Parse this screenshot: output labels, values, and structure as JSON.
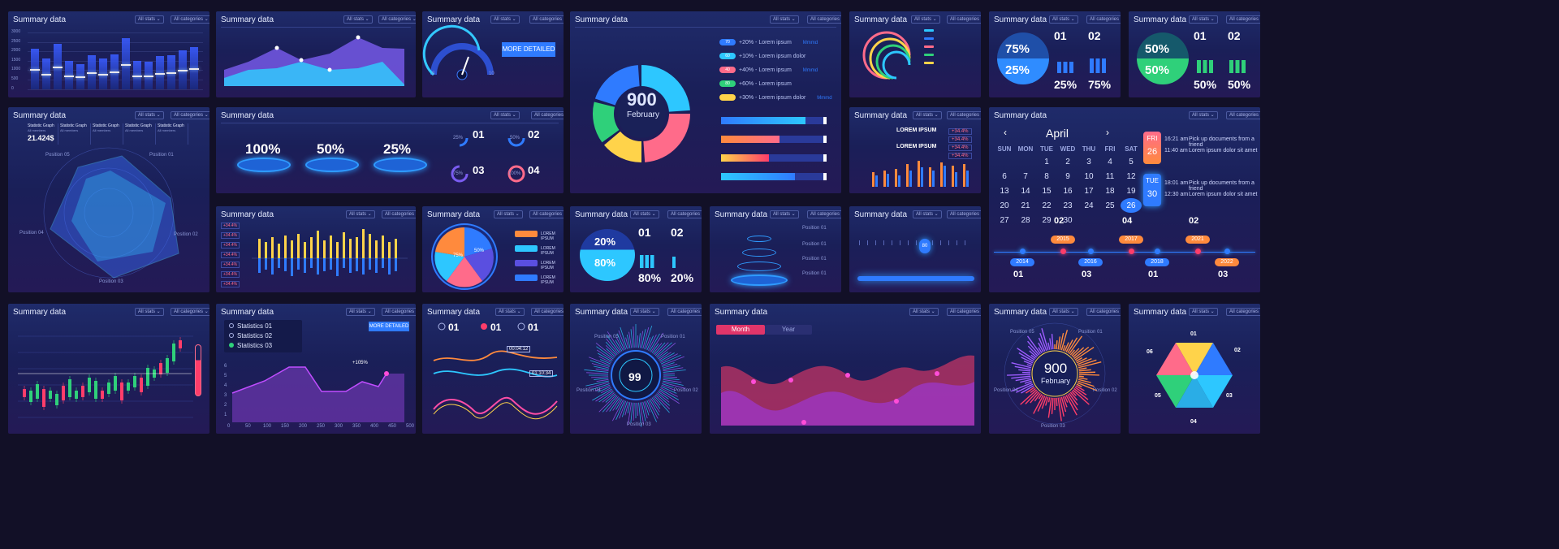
{
  "common": {
    "title": "Summary data",
    "stats": "All stats",
    "categories": "All categories"
  },
  "p1": {
    "values": [
      0.72,
      0.55,
      0.8,
      0.5,
      0.45,
      0.6,
      0.55,
      0.62,
      0.9,
      0.5,
      0.48,
      0.58,
      0.6,
      0.68,
      0.75
    ],
    "yticks": [
      "3000",
      "2500",
      "2000",
      "1500",
      "1000",
      "500",
      "0"
    ]
  },
  "p3": {
    "min": "0",
    "max": "10",
    "button": "MORE DETAILED"
  },
  "p4": {
    "center_value": "900",
    "center_label": "February",
    "legend": [
      {
        "pill": "70",
        "text": "+20% - Lorem ipsum",
        "extra": "Mmmd",
        "color": "#2f7bff"
      },
      {
        "pill": "60",
        "text": "+10% - Lorem ipsum dolor",
        "extra": "",
        "color": "#2dc7ff"
      },
      {
        "pill": "40",
        "text": "+40% - Lorem ipsum",
        "extra": "Mmmd",
        "color": "#ff6b8a"
      },
      {
        "pill": "80",
        "text": "+60% - Lorem ipsum",
        "extra": "",
        "color": "#2fd07a"
      },
      {
        "pill": "",
        "text": "+30% - Lorem ipsum dolor",
        "extra": "Mmmd",
        "color": "#ffd34a"
      }
    ],
    "bars": [
      0.8,
      0.55,
      0.45,
      0.7
    ],
    "donut": [
      {
        "value": 25,
        "color": "#2dc7ff"
      },
      {
        "value": 25,
        "color": "#ff6b8a"
      },
      {
        "value": 15,
        "color": "#ffd34a"
      },
      {
        "value": 15,
        "color": "#2fd07a"
      },
      {
        "value": 20,
        "color": "#2f7bff"
      }
    ]
  },
  "p6": {
    "a_top": "75%",
    "a_bottom": "25%",
    "b_top": "50%",
    "b_bottom": "50%",
    "n1": "01",
    "n2": "02",
    "v1": "25%",
    "v2": "75%",
    "w1": "50%",
    "w2": "50%"
  },
  "p7": {
    "stats": [
      {
        "label": "Statistic Graph",
        "sub": "All members",
        "value": "21.424$"
      },
      {
        "label": "Statistic Graph",
        "sub": "All members"
      },
      {
        "label": "Statistic Graph",
        "sub": "All members"
      },
      {
        "label": "Statistic Graph",
        "sub": "All members"
      },
      {
        "label": "Statistic Graph",
        "sub": "All members"
      }
    ],
    "positions": [
      "Position 01",
      "Position 02",
      "Position 03",
      "Position 04",
      "Position 05"
    ]
  },
  "p8": {
    "pcts": [
      "100%",
      "50%",
      "25%"
    ],
    "rings": [
      "25%",
      "50%",
      "75%",
      "100%"
    ],
    "nums": [
      "01",
      "02",
      "03",
      "04"
    ]
  },
  "p10": {
    "items": [
      "LOREM IPSUM",
      "LOREM IPSUM"
    ],
    "badges": [
      "+34.4%",
      "+34.4%",
      "+34.4%",
      "+34.4%"
    ]
  },
  "cal": {
    "month": "April",
    "days": [
      "SUN",
      "MON",
      "TUE",
      "WED",
      "THU",
      "FRI",
      "SAT"
    ],
    "weeks": [
      [
        "",
        "",
        "1",
        "2",
        "3",
        "4",
        "5"
      ],
      [
        "6",
        "7",
        "8",
        "9",
        "10",
        "11",
        "12"
      ],
      [
        "13",
        "14",
        "15",
        "16",
        "17",
        "18",
        "19"
      ],
      [
        "20",
        "21",
        "22",
        "23",
        "24",
        "25",
        "26"
      ],
      [
        "27",
        "28",
        "29",
        "30",
        "",
        "",
        ""
      ]
    ],
    "events": [
      {
        "day": "FRI",
        "date": "26",
        "time1": "16:21 am",
        "t1": "Pick up documents from a friend",
        "time2": "11:40 am",
        "t2": "Lorem ipsum dolor sit amet"
      },
      {
        "day": "TUE",
        "date": "30",
        "time1": "18:01 am",
        "t1": "Pick up documents from a friend",
        "time2": "12:30 am",
        "t2": "Lorem ipsum dolor sit amet"
      }
    ],
    "years_top": [
      "2015",
      "2017",
      "2021"
    ],
    "years_bottom": [
      "2014",
      "2016",
      "2018",
      "2022"
    ],
    "nums_top": [
      "02",
      "04",
      "02"
    ],
    "nums_bottom": [
      "01",
      "03",
      "01",
      "03"
    ]
  },
  "p11": {
    "badges": [
      "+34.4%",
      "+34.4%",
      "+34.4%",
      "+34.4%",
      "+34.4%",
      "+34.4%",
      "+34.4%"
    ]
  },
  "p13": {
    "legend": [
      "LOREM IPSUM",
      "LOREM IPSUM",
      "LOREM IPSUM",
      "LOREM IPSUM"
    ],
    "slices": [
      "75%",
      "50%"
    ]
  },
  "p14": {
    "top": "20%",
    "bottom": "80%",
    "n1": "01",
    "n2": "02",
    "v1": "80%",
    "v2": "20%"
  },
  "p15": {
    "positions": [
      "Position 01",
      "Position 01",
      "Position 01",
      "Position 01"
    ]
  },
  "p16": {
    "value": "80"
  },
  "p18": {
    "stats": [
      "Statistics 01",
      "Statistics 02",
      "Statistics 03"
    ],
    "button": "MORE DETAILED",
    "tip": "+105%",
    "xticks": [
      "0",
      "50",
      "100",
      "150",
      "200",
      "250",
      "300",
      "350",
      "400",
      "450",
      "500"
    ],
    "yticks": [
      "6",
      "5",
      "4",
      "3",
      "2",
      "1"
    ]
  },
  "p19": {
    "nums": [
      "01",
      "01",
      "01"
    ],
    "time1": "00:04:12",
    "time2": "01:10:34"
  },
  "p20": {
    "value": "99",
    "positions": [
      "Position 01",
      "Position 02",
      "Position 03",
      "Position 04",
      "Position 05"
    ]
  },
  "p21": {
    "tabs": [
      "Month",
      "Year"
    ]
  },
  "p22": {
    "center_value": "900",
    "center_label": "February",
    "positions": [
      "Position 01",
      "Position 02",
      "Position 03",
      "Position 04",
      "Position 05"
    ]
  },
  "p23": {
    "labels": [
      "01",
      "02",
      "03",
      "04",
      "05",
      "06"
    ]
  }
}
